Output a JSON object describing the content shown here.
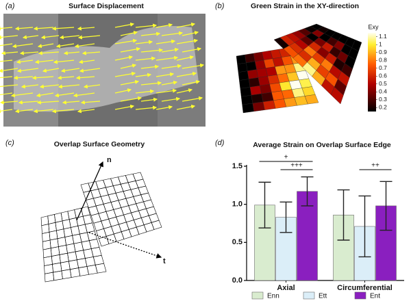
{
  "panels": [
    {
      "label": "(a)",
      "title": "Surface Displacement"
    },
    {
      "label": "(b)",
      "title": "Green Strain in the XY-direction",
      "colorbar": {
        "title": "Exy",
        "ticks": [
          1.1,
          1,
          0.9,
          0.8,
          0.7,
          0.6,
          0.5,
          0.4,
          0.3,
          0.2
        ],
        "lim": [
          0.15,
          1.15
        ]
      }
    },
    {
      "label": "(c)",
      "title": "Overlap Surface Geometry",
      "annotations": [
        "n",
        "t"
      ]
    },
    {
      "label": "(d)"
    }
  ],
  "chart_data": {
    "type": "bar",
    "title": "Average Strain on Overlap Surface Edge",
    "categories": [
      "Axial",
      "Circumferential"
    ],
    "series": [
      {
        "name": "Enn",
        "color": "#d9eccf",
        "values": [
          0.99,
          0.86
        ],
        "errors": [
          0.3,
          0.33
        ]
      },
      {
        "name": "Ett",
        "color": "#dbeef8",
        "values": [
          0.83,
          0.71
        ],
        "errors": [
          0.2,
          0.4
        ]
      },
      {
        "name": "Ent",
        "color": "#8a1fbf",
        "values": [
          1.17,
          0.98
        ],
        "errors": [
          0.19,
          0.32
        ]
      }
    ],
    "ylim": [
      0,
      1.5
    ],
    "yticks": [
      {
        "value": 0,
        "label": "0.0"
      },
      0.5,
      {
        "value": 1,
        "label": "1.0"
      },
      1.5
    ],
    "annotations": [
      "+",
      "+++",
      "++"
    ]
  }
}
